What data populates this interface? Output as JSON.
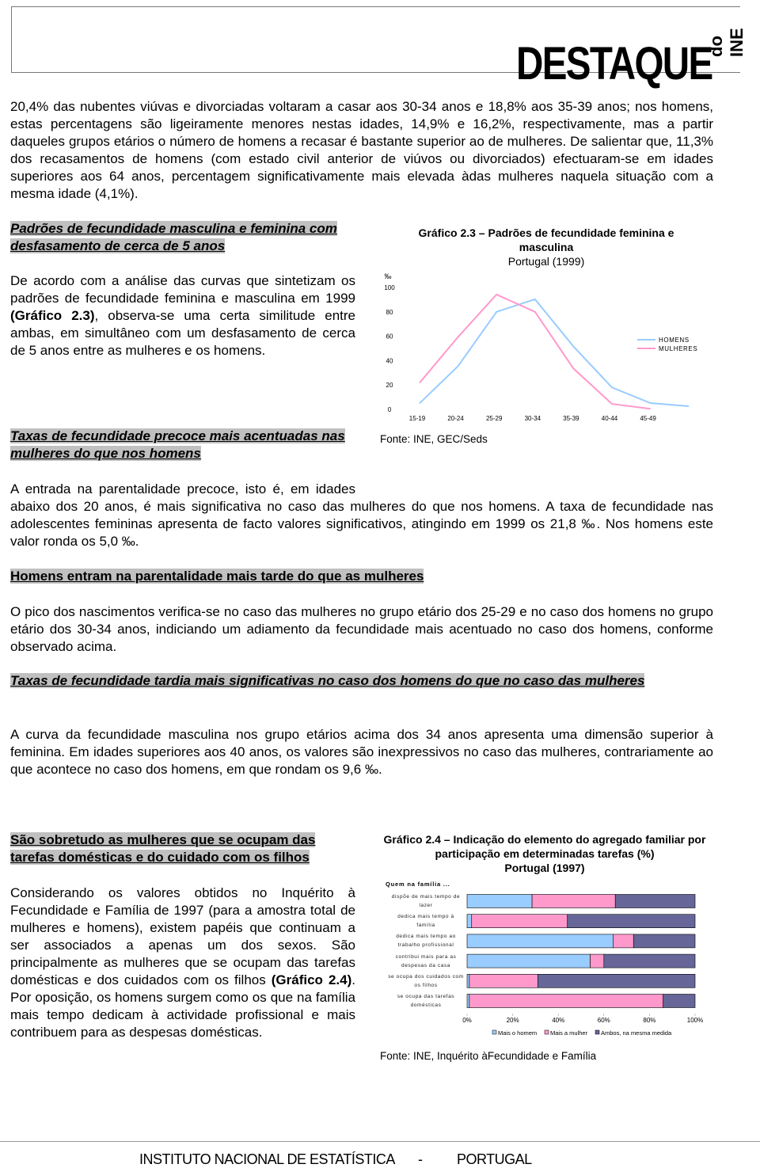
{
  "header": {
    "brand": "DESTAQUE",
    "brand_sub": "do INE"
  },
  "intro": "20,4% das nubentes viúvas e divorciadas voltaram a casar aos 30-34 anos e 18,8% aos 35-39 anos; nos homens, estas percentagens são ligeiramente menores nestas idades, 14,9% e 16,2%, respectivamente, mas a partir daqueles grupos etários o número de homens a recasar é bastante superior ao de mulheres. De salientar que, 11,3% dos recasamentos de homens (com estado civil anterior de viúvos ou divorciados) efectuaram-se em idades superiores aos 64 anos, percentagem significativamente mais elevada àdas mulheres naquela situação com a mesma idade (4,1%).",
  "sections": [
    {
      "heading": "Padrões de fecundidade masculina e feminina com desfasamento de cerca de 5 anos",
      "text": [
        "De acordo com a análise das curvas que sintetizam os padrões de fecundidade feminina e masculina em 1999 ",
        {
          "bold": "(Gráfico 2.3)"
        },
        ", observa-se uma certa similitude entre ambas, em simultâneo com um desfasamento de cerca de 5 anos entre as mulheres e os homens."
      ]
    },
    {
      "heading": "Taxas de fecundidade precoce mais acentuadas nas mulheres do que nos homens",
      "text": [
        "A entrada na parentalidade precoce, isto é, em idades abaixo dos 20 anos, é mais significativa no caso das mulheres do que nos homens. A taxa de fecundidade nas adolescentes femininas apresenta de facto valores significativos, atingindo em 1999 os 21,8 ‰. Nos homens este valor ronda os 5,0 ‰."
      ]
    },
    {
      "heading": "Homens entram na parentalidade mais tarde do que as mulheres",
      "text": [
        "O pico dos nascimentos verifica-se no caso das mulheres no grupo etário dos 25-29 e no caso dos homens no grupo etário dos 30-34 anos, indiciando um adiamento da fecundidade mais acentuado no caso dos homens, conforme observado acima."
      ]
    },
    {
      "heading": "Taxas de fecundidade tardia mais significativas no caso dos homens do que no caso das mulheres",
      "text": [
        "A curva da fecundidade masculina nos grupo etários acima dos 34 anos apresenta uma dimensão superior à feminina. Em idades superiores aos 40 anos, os valores são inexpressivos no caso das mulheres, contrariamente ao que acontece no caso dos homens, em que rondam os 9,6 ‰."
      ]
    },
    {
      "heading": "São sobretudo as mulheres que se ocupam das tarefas domésticas e do cuidado com os filhos",
      "text": [
        "Considerando os valores obtidos no Inquérito à Fecundidade e Família de 1997 (para a amostra total de mulheres e homens), existem papéis que continuam a ser associados a apenas um dos sexos. São principalmente as mulheres que se ocupam das tarefas domésticas e dos cuidados com os filhos ",
        {
          "bold": "(Gráfico 2.4)"
        },
        ". Por oposição, os homens surgem como os que na família mais tempo dedicam à actividade profissional e mais contribuem para as despesas domésticas."
      ]
    }
  ],
  "chart_data": [
    {
      "type": "line",
      "title": "Gráfico 2.3 – Padrões de fecundidade feminina e masculina",
      "subtitle": "Portugal (1999)",
      "ylabel": "‰",
      "source": "Fonte: INE, GEC/Seds",
      "categories": [
        "15-19",
        "20-24",
        "25-29",
        "30-34",
        "35-39",
        "40-44",
        "45-49",
        null
      ],
      "series": [
        {
          "name": "HOMENS",
          "color": "#99ccff",
          "values": [
            5.0,
            35.5,
            80,
            90.3,
            51.6,
            18,
            5.2,
            2.6
          ]
        },
        {
          "name": "MULHERES",
          "color": "#ff99cc",
          "values": [
            21.8,
            59.4,
            94.2,
            80,
            33.5,
            4.5,
            0.5,
            null
          ]
        }
      ],
      "ylim": [
        0,
        100
      ],
      "yticks": [
        0,
        20,
        40,
        60,
        80,
        100
      ],
      "grid": false,
      "legend": "right"
    },
    {
      "type": "stacked-bar-horizontal",
      "title": "Gráfico 2.4 – Indicação do elemento do agregado familiar por participação em determinadas tarefas (%)",
      "subtitle": "Portugal (1997)",
      "axis_title": "Quem na família ...",
      "source": "Fonte: INE, Inquérito àFecundidade e Família",
      "categories": [
        "dispõe de mais tempo de lazer",
        "dedica mais tempo à família",
        "dedica mais tempo ao trabalho profissional",
        "contribui mais para as despesas da casa",
        "se ocupa dos cuidados com os filhos",
        "se ocupa das tarefas domésticas"
      ],
      "series": [
        {
          "name": "Mais o homem",
          "color": "#99ccff",
          "values": [
            28.5,
            2,
            64,
            54,
            1,
            1
          ]
        },
        {
          "name": "Mais a mulher",
          "color": "#ff99cc",
          "values": [
            36.5,
            42,
            9,
            6,
            30,
            85
          ]
        },
        {
          "name": "Ambos, na mesma medida",
          "color": "#666699",
          "values": [
            35,
            56,
            27,
            40,
            69,
            14
          ]
        }
      ],
      "xlim": [
        0,
        100
      ],
      "xticks": [
        {
          "value": 0,
          "label": "0%"
        },
        {
          "value": 20,
          "label": "20%"
        },
        {
          "value": 40,
          "label": "40%"
        },
        {
          "value": 60,
          "label": "60%"
        },
        {
          "value": 80,
          "label": "80%"
        },
        {
          "value": 100,
          "label": "100%"
        }
      ],
      "legend": "bottom"
    }
  ],
  "footer": {
    "institute": "INSTITUTO NACIONAL DE ESTATÍSTICA",
    "separator": "-",
    "country": "PORTUGAL"
  }
}
